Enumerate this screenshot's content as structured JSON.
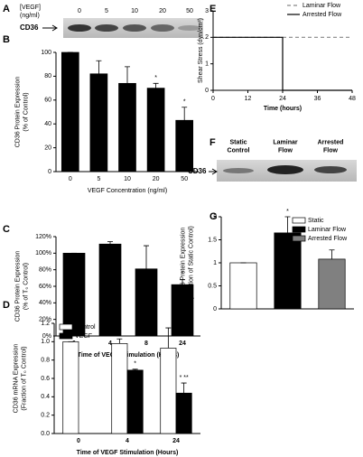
{
  "blots": [
    {
      "panel": "A",
      "header": [
        "[VEGF]",
        "(ng/ml)"
      ],
      "lanes": [
        [
          "0"
        ],
        [
          "5"
        ],
        [
          "10"
        ],
        [
          "20"
        ],
        [
          "50"
        ]
      ],
      "band_label": "CD36"
    },
    {
      "panel": "F",
      "lanes": [
        [
          "Static",
          "Control"
        ],
        [
          "Laminar",
          "Flow"
        ],
        [
          "Arrested",
          "Flow"
        ]
      ],
      "band_label": "CD36"
    }
  ],
  "chart_data": [
    {
      "panel": "B",
      "type": "bar",
      "ylabel": [
        "CD36 Protein Expression",
        "(% of Control)"
      ],
      "xlabel": "VEGF Concentration (ng/ml)",
      "categories": [
        "0",
        "5",
        "10",
        "20",
        "50"
      ],
      "series": [
        {
          "color": "#000000",
          "values": [
            100,
            82,
            74,
            70,
            43
          ],
          "errors": [
            0,
            11,
            14,
            4,
            11
          ],
          "significance": [
            null,
            null,
            null,
            "*",
            "*"
          ]
        }
      ],
      "ylim": [
        0,
        100
      ],
      "yticks": [
        0,
        20,
        40,
        60,
        80,
        100
      ]
    },
    {
      "panel": "C",
      "type": "bar",
      "ylabel": [
        "CD36 Protein Expression",
        "(% of T₀ Control)"
      ],
      "xlabel": "Time of VEGF Stimulation (Hours)",
      "categories": [
        "0",
        "4",
        "8",
        "24"
      ],
      "series": [
        {
          "color": "#000000",
          "values": [
            100,
            111,
            81,
            62
          ],
          "errors": [
            0,
            3,
            28,
            6
          ],
          "significance": [
            null,
            null,
            null,
            "*"
          ]
        }
      ],
      "ylim": [
        0,
        120
      ],
      "yticks": [
        {
          "value": 0,
          "label": "0%"
        },
        {
          "value": 20,
          "label": "20%"
        },
        {
          "value": 40,
          "label": "40%"
        },
        {
          "value": 60,
          "label": "60%"
        },
        {
          "value": 80,
          "label": "80%"
        },
        {
          "value": 100,
          "label": "100%"
        },
        {
          "value": 120,
          "label": "120%"
        }
      ]
    },
    {
      "panel": "D",
      "type": "bar",
      "ylabel": [
        "CD36 mRNA Expression",
        "(Fraction of T₀ Control)"
      ],
      "xlabel": "Time of VEGF Stimulation (Hours)",
      "categories": [
        "0",
        "4",
        "24"
      ],
      "legend": "upper left",
      "series": [
        {
          "name": "Control",
          "color": "#ffffff",
          "values": [
            1.0,
            0.98,
            0.93
          ],
          "errors": [
            0,
            0.05,
            0.22
          ],
          "significance": [
            null,
            null,
            null
          ]
        },
        {
          "name": "VEGF",
          "color": "#000000",
          "values": [
            null,
            0.69,
            0.44
          ],
          "errors": [
            null,
            0.01,
            0.11
          ],
          "significance": [
            null,
            "*",
            "* **"
          ]
        }
      ],
      "ylim": [
        0,
        1.2
      ],
      "yticks": [
        {
          "value": 0,
          "label": "0.0"
        },
        {
          "value": 0.2,
          "label": "0.2"
        },
        {
          "value": 0.4,
          "label": "0.4"
        },
        {
          "value": 0.6,
          "label": "0.6"
        },
        {
          "value": 0.8,
          "label": "0.8"
        },
        {
          "value": 1.0,
          "label": "1.0"
        },
        {
          "value": 1.2,
          "label": "1.2"
        }
      ]
    },
    {
      "panel": "E",
      "type": "line",
      "ylabel": [
        "Shear Stress (dyn/cm²)"
      ],
      "xlabel": "Time (hours)",
      "legend": "upper right",
      "x": [
        0,
        24,
        24,
        48
      ],
      "series": [
        {
          "name": "Laminar Flow",
          "color": "#888888",
          "linestyle": "dashed",
          "values": [
            2,
            2,
            2,
            2
          ]
        },
        {
          "name": "Arrested Flow",
          "color": "#000000",
          "linestyle": "solid",
          "values": [
            2,
            2,
            0,
            0
          ]
        }
      ],
      "xlim": [
        0,
        48
      ],
      "xticks": [
        0,
        12,
        24,
        36,
        48
      ],
      "ylim": [
        0,
        3
      ],
      "yticks": [
        0,
        1,
        2,
        3
      ]
    },
    {
      "panel": "G",
      "type": "bar",
      "ylabel": [
        "CD36 Protein Expression",
        "(Fraction of Static Control)"
      ],
      "legend": "upper right",
      "series": [
        {
          "name": "Static",
          "color": "#ffffff",
          "values": [
            1.0
          ],
          "errors": [
            0
          ],
          "significance": [
            null
          ]
        },
        {
          "name": "Laminar Flow",
          "color": "#000000",
          "values": [
            1.65
          ],
          "errors": [
            0.35
          ],
          "significance": [
            "*"
          ]
        },
        {
          "name": "Arrested Flow",
          "color": "#808080",
          "values": [
            1.08
          ],
          "errors": [
            0.2
          ],
          "significance": [
            null
          ]
        }
      ],
      "ylim": [
        0,
        2
      ],
      "yticks": [
        0,
        0.5,
        1,
        1.5,
        2
      ]
    }
  ]
}
